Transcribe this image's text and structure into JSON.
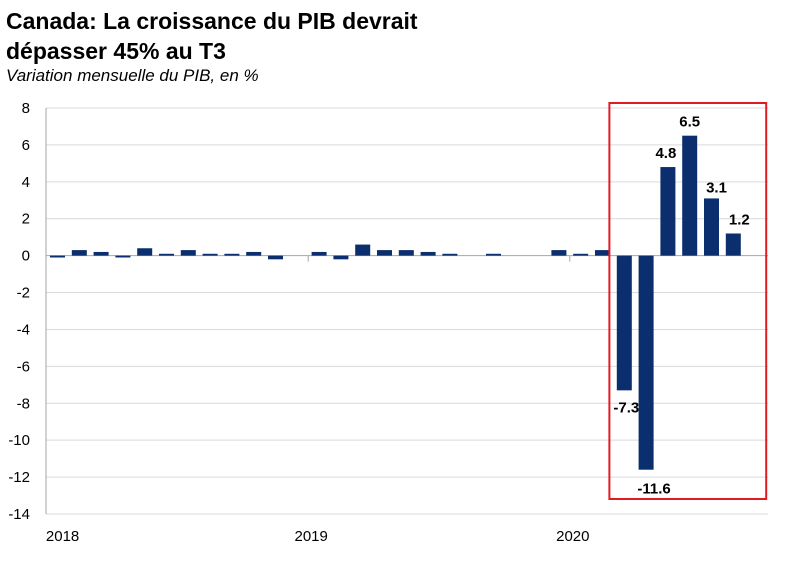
{
  "title_line1": "Canada: La croissance du PIB devrait",
  "title_line2": "dépasser 45% au T3",
  "subtitle": "Variation mensuelle du PIB, en %",
  "colors": {
    "bar": "#0b2f6e",
    "grid": "#d9d9d9",
    "highlight": "#e21b22"
  },
  "chart_data": {
    "type": "bar",
    "title": "Canada: La croissance du PIB devrait dépasser 45% au T3",
    "subtitle": "Variation mensuelle du PIB, en %",
    "ylim": [
      -14,
      8
    ],
    "yticks": [
      8,
      6,
      4,
      2,
      0,
      -2,
      -4,
      -6,
      -8,
      -10,
      -12,
      -14
    ],
    "xtick_labels": [
      "2018",
      "2019",
      "2020"
    ],
    "grid": true,
    "highlight": "red box around 2020 M3–M8",
    "categories": [
      "2018-01",
      "2018-02",
      "2018-03",
      "2018-04",
      "2018-05",
      "2018-06",
      "2018-07",
      "2018-08",
      "2018-09",
      "2018-10",
      "2018-11",
      "2018-12",
      "2019-01",
      "2019-02",
      "2019-03",
      "2019-04",
      "2019-05",
      "2019-06",
      "2019-07",
      "2019-08",
      "2019-09",
      "2019-10",
      "2019-11",
      "2019-12",
      "2020-01",
      "2020-02",
      "2020-03",
      "2020-04",
      "2020-05",
      "2020-06",
      "2020-07",
      "2020-08"
    ],
    "values": [
      -0.1,
      0.3,
      0.2,
      -0.1,
      0.4,
      0.1,
      0.3,
      0.1,
      0.1,
      0.2,
      -0.2,
      0.0,
      0.2,
      -0.2,
      0.6,
      0.3,
      0.3,
      0.2,
      0.1,
      0.0,
      0.1,
      0.0,
      0.0,
      0.3,
      0.1,
      0.3,
      -7.3,
      -11.6,
      4.8,
      6.5,
      3.1,
      1.2
    ],
    "data_labels": {
      "2020-03": "-7.3",
      "2020-04": "-11.6",
      "2020-05": "4.8",
      "2020-06": "6.5",
      "2020-07": "3.1",
      "2020-08": "1.2"
    }
  }
}
